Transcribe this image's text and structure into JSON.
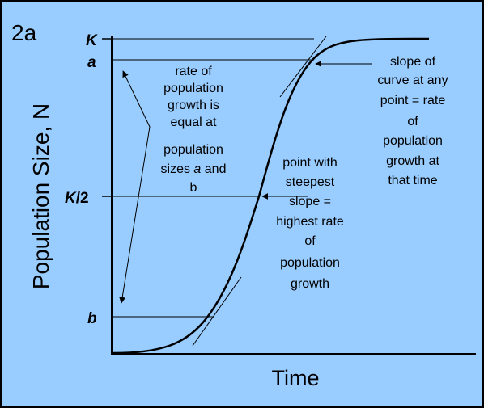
{
  "panel_label": "2a",
  "y_axis_label": "Population Size, N",
  "x_axis_label": "Time",
  "y_ticks": {
    "K": "K",
    "a": "a",
    "k2_letter": "K",
    "k2_rest": "/2",
    "b": "b"
  },
  "annotation_left": [
    "rate of",
    "population",
    "growth is",
    "equal at",
    "population",
    "sizes",
    "a",
    "and",
    "b"
  ],
  "annotation_right": [
    "slope of",
    "curve at any",
    "point = rate",
    "of",
    "population",
    "growth at",
    "that time"
  ],
  "annotation_mid": [
    "point with",
    "steepest",
    "slope =",
    "highest rate",
    "of",
    "population",
    "growth"
  ],
  "colors": {
    "background": "#99ccff",
    "line": "#000000"
  }
}
